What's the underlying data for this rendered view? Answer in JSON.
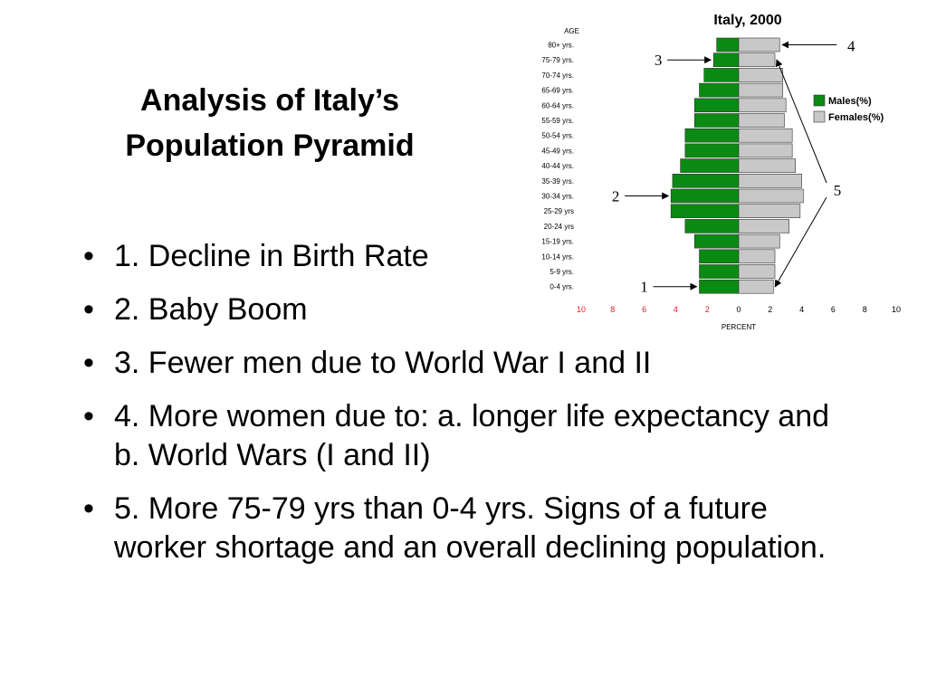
{
  "slide": {
    "title_lines": [
      "Analysis of Italy’s",
      "Population Pyramid"
    ],
    "bullets": [
      "1. Decline in Birth Rate",
      "2. Baby Boom",
      "3. Fewer men due to World War I and II",
      "4. More women due to: a. longer life expectancy and b. World Wars (I and II)",
      "5. More 75-79 yrs than 0-4 yrs. Signs of a future worker shortage and an overall declining population."
    ],
    "bullet_glyph": "•"
  },
  "chart_data": {
    "type": "bar",
    "orientation": "horizontal-pyramid",
    "title": "Italy, 2000",
    "ylabel": "AGE",
    "xlabel": "PERCENT",
    "xlim": [
      -10,
      10
    ],
    "x_ticks": [
      10,
      8,
      6,
      4,
      2,
      0,
      2,
      4,
      6,
      8,
      10
    ],
    "categories": [
      "80+ yrs.",
      "75-79 yrs.",
      "70-74 yrs.",
      "65-69 yrs.",
      "60-64 yrs.",
      "55-59 yrs.",
      "50-54 yrs.",
      "45-49 yrs.",
      "40-44 yrs.",
      "35-39 yrs.",
      "30-34 yrs.",
      "25-29 yrs",
      "20-24 yrs",
      "15-19 yrs.",
      "10-14 yrs.",
      "5-9 yrs.",
      "0-4 yrs."
    ],
    "series": [
      {
        "name": "Males(%)",
        "color": "#0a8a12",
        "values": [
          1.4,
          1.6,
          2.2,
          2.5,
          2.8,
          2.8,
          3.4,
          3.4,
          3.7,
          4.2,
          4.3,
          4.3,
          3.4,
          2.8,
          2.5,
          2.5,
          2.5
        ]
      },
      {
        "name": "Females(%)",
        "color": "#c8c8c8",
        "values": [
          2.6,
          2.3,
          2.8,
          2.8,
          3.0,
          2.9,
          3.4,
          3.4,
          3.6,
          4.0,
          4.1,
          3.9,
          3.2,
          2.6,
          2.3,
          2.3,
          2.2
        ]
      }
    ],
    "legend": "right",
    "annotations": [
      {
        "label": "1",
        "target": "0-4 yrs.",
        "side": "left"
      },
      {
        "label": "2",
        "target": "30-34 yrs.",
        "side": "left"
      },
      {
        "label": "3",
        "target": "75-79 yrs.",
        "side": "left"
      },
      {
        "label": "4",
        "target": "80+ yrs.",
        "side": "right"
      },
      {
        "label": "5",
        "targets": [
          "75-79 yrs.",
          "0-4 yrs."
        ],
        "side": "right"
      }
    ]
  }
}
